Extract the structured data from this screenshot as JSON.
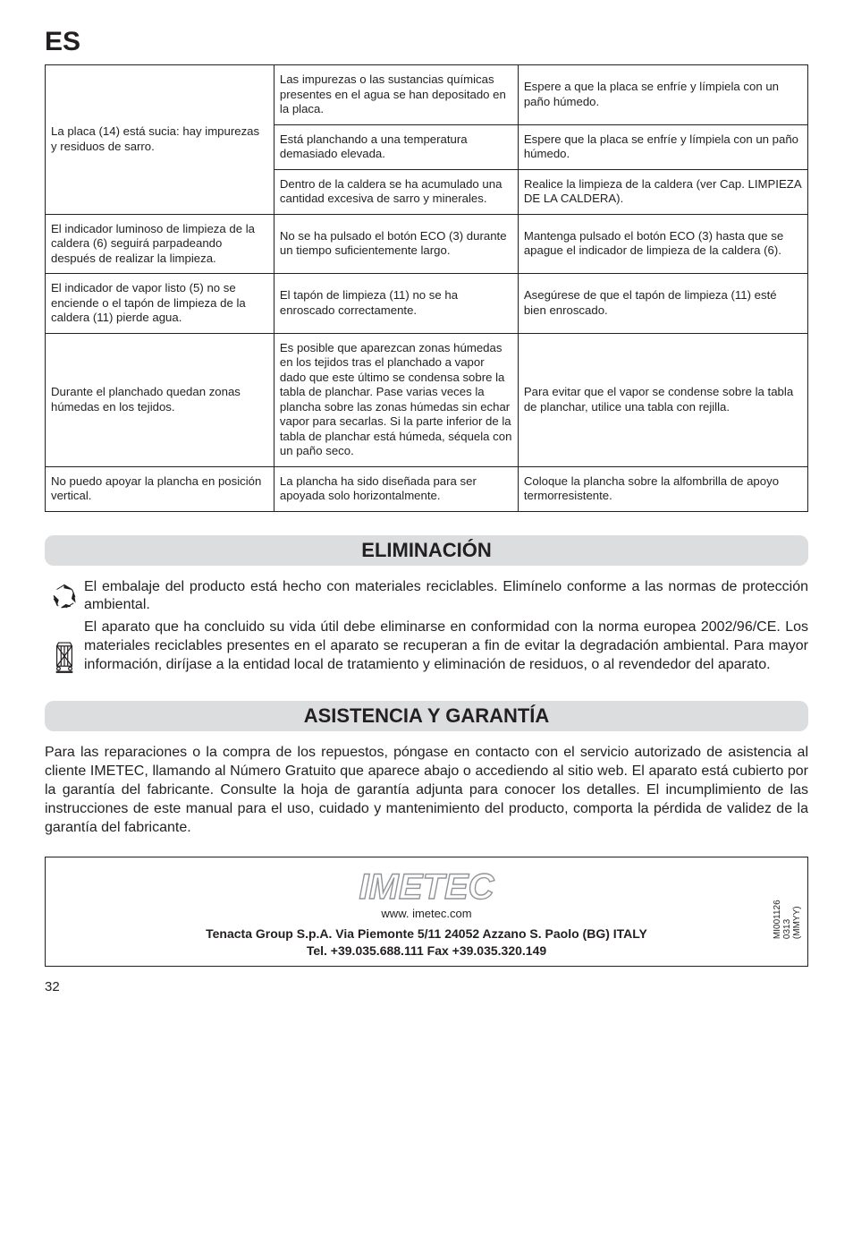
{
  "colors": {
    "text": "#231f20",
    "sectionBg": "#dcddde",
    "border": "#231f20",
    "background": "#ffffff",
    "logoStroke": "#929497"
  },
  "fonts": {
    "body": "Helvetica, Arial, sans-serif",
    "tableSize": 13.2,
    "paraSize": 16,
    "langSize": 30,
    "sectionSize": 22
  },
  "lang": "ES",
  "table": {
    "columnWidths": [
      "30%",
      "32%",
      "38%"
    ],
    "rows": [
      {
        "col1": {
          "text": "La placa (14) está sucia: hay impurezas y residuos de sarro.",
          "rowspan": 3
        },
        "col2": "Las impurezas o las sustancias químicas presentes en el agua se han depositado en la placa.",
        "col3": "Espere a que la placa se enfríe y límpiela con un paño húmedo."
      },
      {
        "col2": "Está planchando a una temperatura demasiado elevada.",
        "col3": "Espere que la placa se enfríe y límpiela con un paño húmedo."
      },
      {
        "col2": "Dentro de la caldera se ha acumulado una cantidad excesiva de sarro y minerales.",
        "col3": "Realice la limpieza de la caldera (ver Cap. LIMPIEZA DE LA CALDERA)."
      },
      {
        "col1": {
          "text": "El indicador luminoso de limpieza de la caldera (6) seguirá parpadeando después de realizar la limpieza."
        },
        "col2": "No se ha pulsado el botón ECO (3) durante un tiempo suficientemente largo.",
        "col3": "Mantenga pulsado el botón ECO (3) hasta que se apague el indicador de limpieza de la caldera (6)."
      },
      {
        "col1": {
          "text": "El indicador de vapor listo (5) no se enciende o el tapón de limpieza de la caldera (11) pierde agua."
        },
        "col2": "El tapón de limpieza (11) no se ha enroscado correctamente.",
        "col3": "Asegúrese de que el tapón de limpieza (11) esté bien enroscado."
      },
      {
        "col1": {
          "text": "Durante el planchado quedan zonas húmedas en los tejidos."
        },
        "col2": "Es posible que aparezcan zonas húmedas en los tejidos tras el planchado a vapor dado que este último se condensa sobre la tabla de planchar. Pase varias veces la plancha sobre las zonas húmedas sin echar vapor para secarlas. Si la parte inferior de la tabla de planchar está húmeda, séquela con un paño seco.",
        "col3": "Para evitar que el vapor se condense sobre la tabla de planchar, utilice una tabla con rejilla."
      },
      {
        "col1": {
          "text": "No puedo apoyar la plancha en posición vertical."
        },
        "col2": "La plancha ha sido diseñada para ser apoyada solo horizontalmente.",
        "col3": "Coloque la plancha sobre la alfombrilla de apoyo termorresistente."
      }
    ]
  },
  "section1": {
    "title": "ELIMINACIÓN",
    "para1": "El embalaje del producto está hecho con materiales reciclables. Elimínelo conforme a las normas de protección ambiental.",
    "para2": "El aparato que ha concluido su vida útil debe eliminarse en conformidad con la norma europea 2002/96/CE. Los materiales reciclables presentes en el aparato se recuperan a fin de evitar la degradación ambiental. Para mayor información, diríjase a la entidad local de tratamiento y eliminación de residuos, o al revendedor del aparato."
  },
  "section2": {
    "title": "ASISTENCIA Y GARANTÍA",
    "para": "Para las reparaciones o la compra de los repuestos, póngase en contacto con el servicio autorizado de asistencia al cliente IMETEC, llamando al Número Gratuito que aparece abajo o accediendo al sitio web. El aparato está cubierto por la garantía del fabricante. Consulte la hoja de garantía adjunta para conocer los detalles. El incumplimiento de las instrucciones de este manual para el uso, cuidado y mantenimiento del producto, comporta la pérdida de validez de la garantía del fabricante."
  },
  "footer": {
    "url": "www. imetec.com",
    "addr1": "Tenacta Group S.p.A.   Via Piemonte 5/11   24052 Azzano S. Paolo (BG)   ITALY",
    "addr2": "Tel. +39.035.688.111   Fax +39.035.320.149",
    "side1": "MI001126",
    "side2": "0313 (MMYY)"
  },
  "pageNum": "32"
}
